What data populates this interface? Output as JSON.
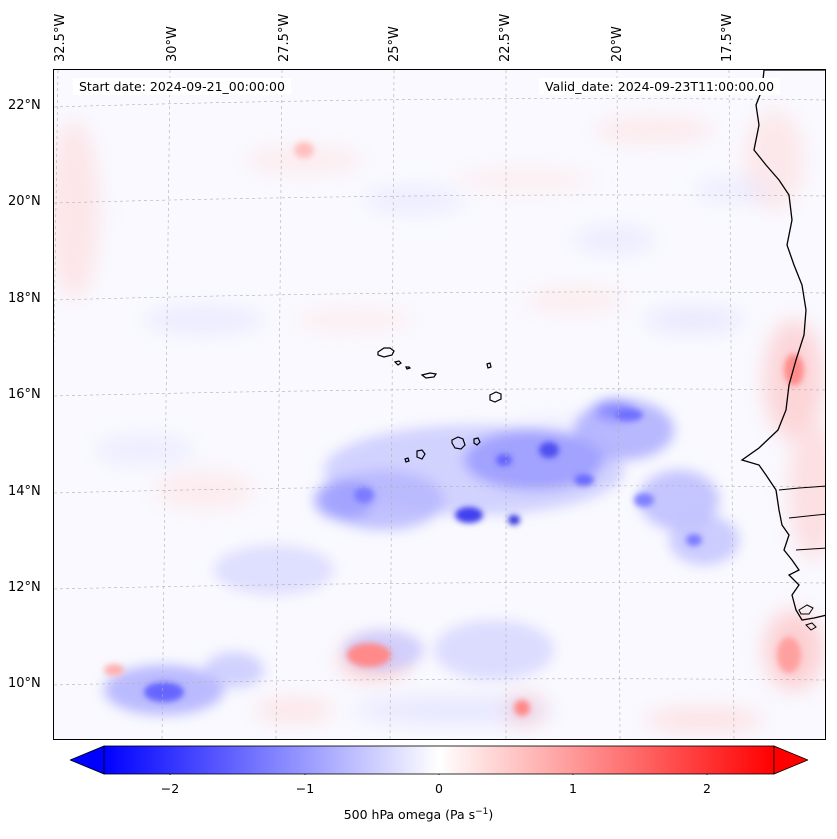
{
  "header": {
    "start_date": "Start date: 2024-09-21_00:00:00",
    "valid_date": "Valid_date: 2024-09-23T11:00:00.00"
  },
  "axes": {
    "longitude_labels": [
      "32.5°W",
      "30°W",
      "27.5°W",
      "25°W",
      "22.5°W",
      "20°W",
      "17.5°W"
    ],
    "latitude_labels": [
      "22°N",
      "20°N",
      "18°N",
      "16°N",
      "14°N",
      "12°N",
      "10°N"
    ]
  },
  "colorbar": {
    "label_prefix": "500 hPa omega (Pa s",
    "label_exponent": "−1",
    "label_suffix": ")",
    "tick_labels": [
      "−2",
      "−1",
      "0",
      "1",
      "2"
    ],
    "ticks": [
      -2,
      -1,
      0,
      1,
      2
    ],
    "range": [
      -2.5,
      2.5
    ],
    "colormap": "bwr",
    "extend": "both",
    "colors": {
      "min": "#0000ff",
      "mid": "#ffffff",
      "max": "#ff0000"
    }
  },
  "map": {
    "extent": {
      "lon": [
        -33,
        -15.8
      ],
      "lat": [
        8.9,
        22.8
      ]
    },
    "gridlines": true,
    "coastlines": true,
    "features": [
      "Cape Verde islands",
      "West African coast (Mauritania, Senegal, Guinea-Bissau, Guinea)"
    ]
  }
}
